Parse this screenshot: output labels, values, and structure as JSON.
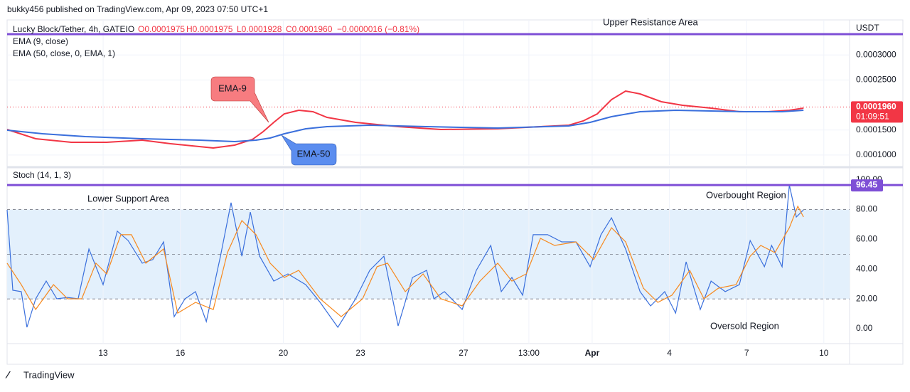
{
  "header": {
    "publisher": "bukky456 published on TradingView.com, Apr 09, 2023 07:50 UTC+1"
  },
  "footer": {
    "brand": "TradingView"
  },
  "chart_data": [
    {
      "type": "line",
      "symbol": "Lucky Block/Tether, 4h, GATEIO",
      "ohlc": {
        "open": "O0.0001975",
        "high": "H0.0001975",
        "low": "L0.0001928",
        "close": "C0.0001960",
        "change": "−0.0000016 (−0.81%)"
      },
      "indicators": [
        "EMA (9, close)",
        "EMA (50, close, 0, EMA, 1)"
      ],
      "currency": "USDT",
      "xlim": [
        -3.73,
        29.0
      ],
      "ylim": [
        8e-05,
        0.00037
      ],
      "yticks": [
        {
          "value": 0.0001,
          "label": "0.0001000"
        },
        {
          "value": 0.00015,
          "label": "0.0001500"
        },
        {
          "value": 0.00025,
          "label": "0.0002500"
        },
        {
          "value": 0.0003,
          "label": "0.0003000"
        }
      ],
      "grid": true,
      "resistance": {
        "label": "Upper Resistance Area",
        "value": 0.0003416,
        "color": "#7e4fd6"
      },
      "last_price": {
        "value": 0.000196,
        "label": "0.0001960",
        "countdown": "01:09:51",
        "color": "#f23645"
      },
      "callouts": [
        {
          "text": "EMA-9",
          "color": "#f77c80"
        },
        {
          "text": "EMA-50",
          "color": "#5b8def"
        }
      ],
      "series": [
        {
          "color": "#f23645",
          "x": [
            -3.73,
            -2.62,
            -1.24,
            0.14,
            1.52,
            2.62,
            4.28,
            5.11,
            5.8,
            6.22,
            6.63,
            7.04,
            7.6,
            8.15,
            8.7,
            9.81,
            11.46,
            13.12,
            15.33,
            16.99,
            18.09,
            18.65,
            19.2,
            19.75,
            20.3,
            20.86,
            21.69,
            22.51,
            23.62,
            24.72,
            25.83,
            26.66,
            27.21
          ],
          "values": [
            0.0001511,
            0.0001326,
            0.0001255,
            0.0001255,
            0.0001298,
            0.0001226,
            0.0001141,
            0.0001198,
            0.0001312,
            0.0001468,
            0.0001653,
            0.0001824,
            0.0001895,
            0.0001866,
            0.0001752,
            0.0001653,
            0.0001568,
            0.0001511,
            0.0001525,
            0.0001568,
            0.0001596,
            0.0001681,
            0.0001824,
            0.0002108,
            0.0002278,
            0.0002222,
            0.0002065,
            0.0001994,
            0.0001937,
            0.0001866,
            0.0001866,
            0.0001895,
            0.0001937
          ]
        },
        {
          "color": "#3a6fdc",
          "x": [
            -3.73,
            -2.35,
            -0.69,
            1.52,
            3.73,
            5.11,
            5.94,
            6.49,
            7.04,
            7.87,
            8.7,
            10.36,
            12.57,
            15.33,
            18.09,
            18.92,
            19.75,
            20.86,
            22.24,
            23.62,
            25.0,
            26.38,
            27.21
          ],
          "values": [
            0.0001497,
            0.0001426,
            0.0001369,
            0.0001326,
            0.0001298,
            0.0001269,
            0.0001298,
            0.000134,
            0.0001426,
            0.0001525,
            0.0001568,
            0.0001596,
            0.0001568,
            0.0001539,
            0.0001582,
            0.0001653,
            0.0001767,
            0.0001866,
            0.0001895,
            0.000188,
            0.0001866,
            0.0001866,
            0.0001895
          ]
        }
      ]
    },
    {
      "type": "line",
      "indicator": "Stoch (14, 1, 3)",
      "xlim": [
        -3.73,
        29.0
      ],
      "xticks": [
        {
          "value": 0,
          "label": "13"
        },
        {
          "value": 3,
          "label": "16"
        },
        {
          "value": 7,
          "label": "20"
        },
        {
          "value": 10,
          "label": "23"
        },
        {
          "value": 14,
          "label": "27"
        },
        {
          "value": 16.54,
          "label": "13:00"
        },
        {
          "value": 19,
          "label": "Apr"
        },
        {
          "value": 22,
          "label": "4"
        },
        {
          "value": 25,
          "label": "7"
        },
        {
          "value": 28,
          "label": "10"
        }
      ],
      "ylim": [
        -10,
        107
      ],
      "yticks": [
        {
          "value": 0,
          "label": "0.00"
        },
        {
          "value": 20,
          "label": "20.00"
        },
        {
          "value": 40,
          "label": "40.00"
        },
        {
          "value": 60,
          "label": "60.00"
        },
        {
          "value": 80,
          "label": "80.00"
        },
        {
          "value": 100,
          "label": "100.00"
        }
      ],
      "bands": {
        "upper": 80,
        "middle": 50,
        "lower": 20,
        "fill": "#e3f0fc"
      },
      "marker_level": 96.45,
      "marker_color": "#7e4fd6",
      "annotations": [
        "Lower Support Area",
        "Overbought Region",
        "Oversold Region"
      ],
      "series": [
        {
          "color": "#3a6fdc",
          "x": [
            -3.73,
            -3.51,
            -3.18,
            -2.96,
            -2.62,
            -2.21,
            -1.8,
            -1.38,
            -0.97,
            -0.55,
            0,
            0.55,
            0.97,
            1.52,
            1.93,
            2.35,
            2.76,
            3.18,
            3.59,
            4.01,
            4.56,
            4.97,
            5.39,
            5.72,
            6.08,
            6.63,
            7.18,
            7.87,
            8.43,
            9.12,
            9.81,
            10.36,
            10.91,
            11.46,
            12.02,
            12.57,
            12.85,
            13.26,
            13.95,
            14.5,
            15.06,
            15.47,
            15.88,
            16.3,
            16.71,
            17.27,
            17.82,
            18.37,
            18.92,
            19.34,
            19.75,
            20.3,
            20.86,
            21.27,
            21.82,
            22.24,
            22.65,
            23.2,
            23.62,
            24.17,
            24.72,
            25.14,
            25.69,
            25.97,
            26.38,
            26.66,
            26.93,
            27.21
          ],
          "values": [
            79.8,
            25.8,
            24.9,
            1.0,
            20.1,
            32.0,
            20.1,
            21.0,
            20.1,
            53.5,
            29.6,
            65.5,
            59.2,
            44.0,
            46.4,
            58.3,
            8.1,
            20.1,
            24.9,
            4.8,
            48.7,
            84.6,
            48.7,
            78.3,
            48.7,
            32.0,
            36.8,
            29.6,
            17.7,
            1.0,
            20.1,
            39.2,
            48.7,
            1.9,
            34.4,
            39.2,
            20.1,
            24.9,
            12.9,
            39.2,
            55.9,
            24.9,
            34.4,
            22.5,
            63.1,
            63.1,
            58.3,
            58.3,
            41.6,
            63.1,
            74.5,
            53.5,
            24.9,
            15.3,
            24.9,
            10.5,
            44.9,
            12.9,
            32.0,
            24.9,
            29.6,
            59.2,
            41.6,
            55.9,
            41.6,
            96.45,
            75.0,
            79.8
          ]
        },
        {
          "color": "#f7891e",
          "x": [
            -3.73,
            -3.18,
            -2.62,
            -1.93,
            -1.38,
            -0.83,
            -0.28,
            0.14,
            0.69,
            1.1,
            1.66,
            2.35,
            2.9,
            3.59,
            4.28,
            4.83,
            5.39,
            5.94,
            6.49,
            7.04,
            7.6,
            8.43,
            9.25,
            10.08,
            10.64,
            11.05,
            11.74,
            12.43,
            13.12,
            13.95,
            14.64,
            15.33,
            15.88,
            16.44,
            16.99,
            17.54,
            18.37,
            19.06,
            19.75,
            20.3,
            20.99,
            21.55,
            22.1,
            22.79,
            23.34,
            23.9,
            24.59,
            25.14,
            25.55,
            26.1,
            26.66,
            26.99,
            27.21
          ],
          "values": [
            44.0,
            29.6,
            12.9,
            29.6,
            20.1,
            20.1,
            44.0,
            36.8,
            63.1,
            63.1,
            44.0,
            53.5,
            10.5,
            17.7,
            12.9,
            51.1,
            72.6,
            63.1,
            44.0,
            34.4,
            39.2,
            20.1,
            8.1,
            20.1,
            41.6,
            44.0,
            24.9,
            36.8,
            20.1,
            15.3,
            32.0,
            44.0,
            32.0,
            36.8,
            60.7,
            55.9,
            58.3,
            46.4,
            67.8,
            58.3,
            27.2,
            17.7,
            22.5,
            39.2,
            20.1,
            27.2,
            29.6,
            48.7,
            55.9,
            51.1,
            67.8,
            82.2,
            75.0
          ]
        }
      ]
    }
  ]
}
